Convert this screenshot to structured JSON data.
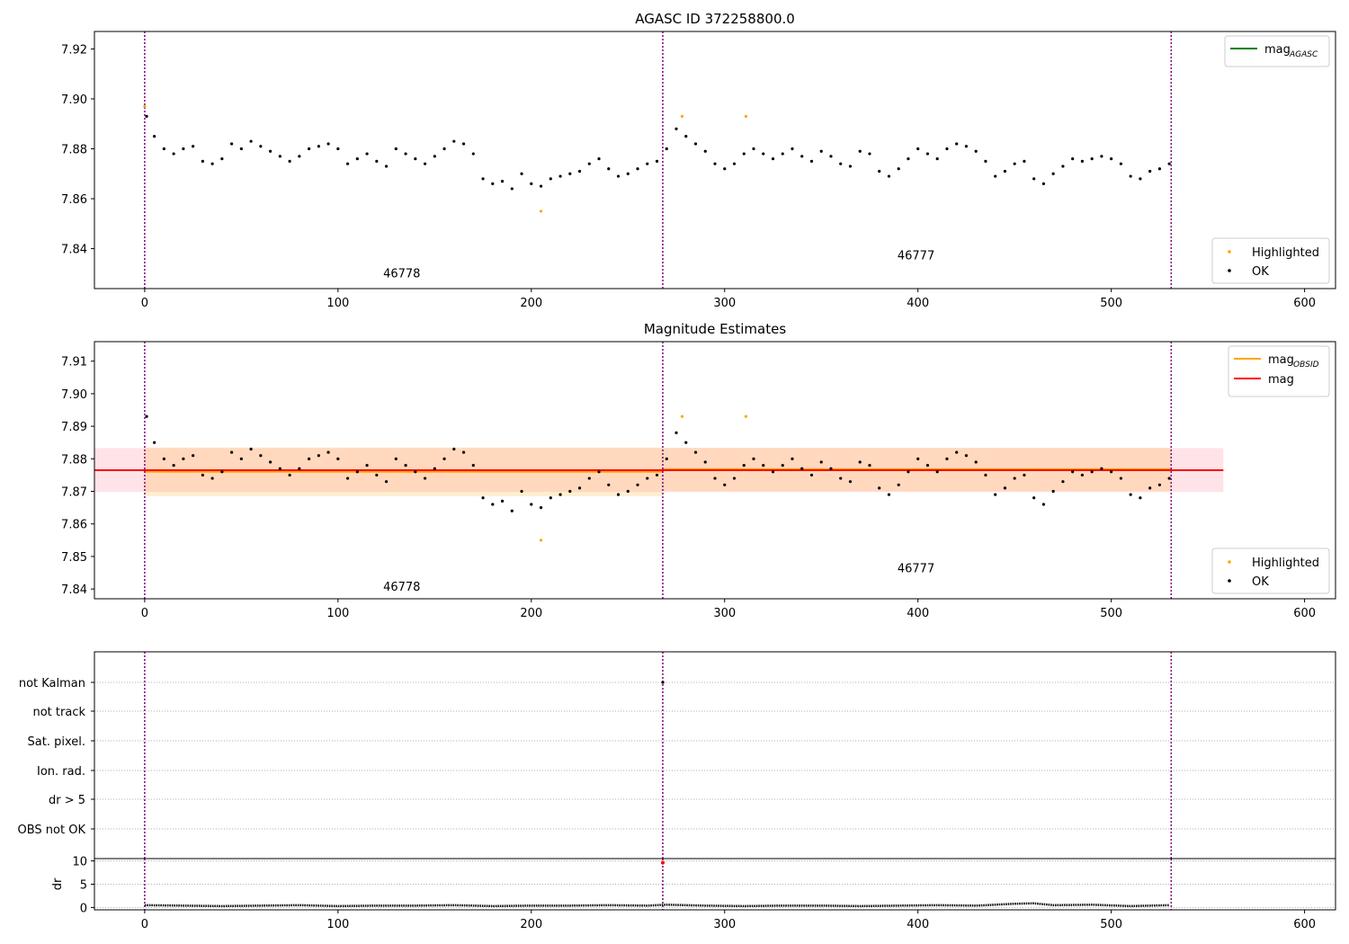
{
  "chart_data": [
    {
      "type": "scatter",
      "title": "AGASC ID 372258800.0",
      "xlim": [
        -26,
        616
      ],
      "ylim": [
        7.824,
        7.927
      ],
      "xticks": [
        0,
        100,
        200,
        300,
        400,
        500,
        600
      ],
      "yticks": [
        7.84,
        7.86,
        7.88,
        7.9,
        7.92
      ],
      "ytick_labels": [
        "7.84",
        "7.86",
        "7.88",
        "7.90",
        "7.92"
      ],
      "obs_boundaries": [
        0,
        268,
        531
      ],
      "obsid_labels": [
        {
          "text": "46778",
          "x": 133,
          "y": 7.8285
        },
        {
          "text": "46777",
          "x": 399,
          "y": 7.8357
        }
      ],
      "legend_top": [
        {
          "label": "mag",
          "sub": "AGASC",
          "color": "#008000"
        }
      ],
      "legend_bottom": [
        {
          "label": "Highlighted",
          "color": "#ffa500"
        },
        {
          "label": "OK",
          "color": "#000000"
        }
      ],
      "series": [
        {
          "name": "OK",
          "color": "#000000",
          "x": [
            1,
            5,
            10,
            15,
            20,
            25,
            30,
            35,
            40,
            45,
            50,
            55,
            60,
            65,
            70,
            75,
            80,
            85,
            90,
            95,
            100,
            105,
            110,
            115,
            120,
            125,
            130,
            135,
            140,
            145,
            150,
            155,
            160,
            165,
            170,
            175,
            180,
            185,
            190,
            195,
            200,
            205,
            210,
            215,
            220,
            225,
            230,
            235,
            240,
            245,
            250,
            255,
            260,
            265,
            270,
            275,
            280,
            285,
            290,
            295,
            300,
            305,
            310,
            315,
            320,
            325,
            330,
            335,
            340,
            345,
            350,
            355,
            360,
            365,
            370,
            375,
            380,
            385,
            390,
            395,
            400,
            405,
            410,
            415,
            420,
            425,
            430,
            435,
            440,
            445,
            450,
            455,
            460,
            465,
            470,
            475,
            480,
            485,
            490,
            495,
            500,
            505,
            510,
            515,
            520,
            525,
            530
          ],
          "y": [
            7.893,
            7.885,
            7.88,
            7.878,
            7.88,
            7.881,
            7.875,
            7.874,
            7.876,
            7.882,
            7.88,
            7.883,
            7.881,
            7.879,
            7.877,
            7.875,
            7.877,
            7.88,
            7.881,
            7.882,
            7.88,
            7.874,
            7.876,
            7.878,
            7.875,
            7.873,
            7.88,
            7.878,
            7.876,
            7.874,
            7.877,
            7.88,
            7.883,
            7.882,
            7.878,
            7.868,
            7.866,
            7.867,
            7.864,
            7.87,
            7.866,
            7.865,
            7.868,
            7.869,
            7.87,
            7.871,
            7.874,
            7.876,
            7.872,
            7.869,
            7.87,
            7.872,
            7.874,
            7.875,
            7.88,
            7.888,
            7.885,
            7.882,
            7.879,
            7.874,
            7.872,
            7.874,
            7.878,
            7.88,
            7.878,
            7.876,
            7.878,
            7.88,
            7.877,
            7.875,
            7.879,
            7.877,
            7.874,
            7.873,
            7.879,
            7.878,
            7.871,
            7.869,
            7.872,
            7.876,
            7.88,
            7.878,
            7.876,
            7.88,
            7.882,
            7.881,
            7.879,
            7.875,
            7.869,
            7.871,
            7.874,
            7.875,
            7.868,
            7.866,
            7.87,
            7.873,
            7.876,
            7.875,
            7.876,
            7.877,
            7.876,
            7.874,
            7.869,
            7.868,
            7.871,
            7.872,
            7.874
          ]
        },
        {
          "name": "Highlighted",
          "color": "#ffa500",
          "x": [
            0,
            205,
            278,
            311
          ],
          "y": [
            7.897,
            7.855,
            7.893,
            7.893
          ]
        }
      ]
    },
    {
      "type": "scatter",
      "title": "Magnitude Estimates",
      "xlim": [
        -26,
        616
      ],
      "ylim": [
        7.837,
        7.916
      ],
      "xticks": [
        0,
        100,
        200,
        300,
        400,
        500,
        600
      ],
      "yticks": [
        7.84,
        7.85,
        7.86,
        7.87,
        7.88,
        7.89,
        7.9,
        7.91
      ],
      "ytick_labels": [
        "7.84",
        "7.85",
        "7.86",
        "7.87",
        "7.88",
        "7.89",
        "7.90",
        "7.91"
      ],
      "obs_boundaries": [
        0,
        268,
        531
      ],
      "obsid_labels": [
        {
          "text": "46778",
          "x": 133,
          "y": 7.8395
        },
        {
          "text": "46777",
          "x": 399,
          "y": 7.8452
        }
      ],
      "legend_top": [
        {
          "label": "mag",
          "sub": "OBSID",
          "color": "#ffa500"
        },
        {
          "label": "mag",
          "sub": "",
          "color": "#ff0000"
        }
      ],
      "legend_bottom": [
        {
          "label": "Highlighted",
          "color": "#ffa500"
        },
        {
          "label": "OK",
          "color": "#000000"
        }
      ],
      "mag": {
        "value": 7.8765,
        "band": [
          7.8698,
          7.8833
        ],
        "xrange": [
          -26,
          558
        ],
        "color": "#ff0000",
        "band_color": "#ffc0cb"
      },
      "mag_obsid": [
        {
          "xrange": [
            0,
            268
          ],
          "value": 7.876,
          "band": [
            7.8685,
            7.8835
          ]
        },
        {
          "xrange": [
            268,
            531
          ],
          "value": 7.8768,
          "band": [
            7.87,
            7.8834
          ]
        }
      ],
      "series": [
        {
          "name": "OK",
          "color": "#000000",
          "x": [
            1,
            5,
            10,
            15,
            20,
            25,
            30,
            35,
            40,
            45,
            50,
            55,
            60,
            65,
            70,
            75,
            80,
            85,
            90,
            95,
            100,
            105,
            110,
            115,
            120,
            125,
            130,
            135,
            140,
            145,
            150,
            155,
            160,
            165,
            170,
            175,
            180,
            185,
            190,
            195,
            200,
            205,
            210,
            215,
            220,
            225,
            230,
            235,
            240,
            245,
            250,
            255,
            260,
            265,
            270,
            275,
            280,
            285,
            290,
            295,
            300,
            305,
            310,
            315,
            320,
            325,
            330,
            335,
            340,
            345,
            350,
            355,
            360,
            365,
            370,
            375,
            380,
            385,
            390,
            395,
            400,
            405,
            410,
            415,
            420,
            425,
            430,
            435,
            440,
            445,
            450,
            455,
            460,
            465,
            470,
            475,
            480,
            485,
            490,
            495,
            500,
            505,
            510,
            515,
            520,
            525,
            530
          ],
          "y": [
            7.893,
            7.885,
            7.88,
            7.878,
            7.88,
            7.881,
            7.875,
            7.874,
            7.876,
            7.882,
            7.88,
            7.883,
            7.881,
            7.879,
            7.877,
            7.875,
            7.877,
            7.88,
            7.881,
            7.882,
            7.88,
            7.874,
            7.876,
            7.878,
            7.875,
            7.873,
            7.88,
            7.878,
            7.876,
            7.874,
            7.877,
            7.88,
            7.883,
            7.882,
            7.878,
            7.868,
            7.866,
            7.867,
            7.864,
            7.87,
            7.866,
            7.865,
            7.868,
            7.869,
            7.87,
            7.871,
            7.874,
            7.876,
            7.872,
            7.869,
            7.87,
            7.872,
            7.874,
            7.875,
            7.88,
            7.888,
            7.885,
            7.882,
            7.879,
            7.874,
            7.872,
            7.874,
            7.878,
            7.88,
            7.878,
            7.876,
            7.878,
            7.88,
            7.877,
            7.875,
            7.879,
            7.877,
            7.874,
            7.873,
            7.879,
            7.878,
            7.871,
            7.869,
            7.872,
            7.876,
            7.88,
            7.878,
            7.876,
            7.88,
            7.882,
            7.881,
            7.879,
            7.875,
            7.869,
            7.871,
            7.874,
            7.875,
            7.868,
            7.866,
            7.87,
            7.873,
            7.876,
            7.875,
            7.876,
            7.877,
            7.876,
            7.874,
            7.869,
            7.868,
            7.871,
            7.872,
            7.874
          ]
        },
        {
          "name": "Highlighted",
          "color": "#ffa500",
          "x": [
            205,
            278,
            311
          ],
          "y": [
            7.855,
            7.893,
            7.893
          ]
        }
      ]
    },
    {
      "type": "scatter",
      "xlim": [
        -26,
        616
      ],
      "categories": [
        "not Kalman",
        "not track",
        "Sat. pixel.",
        "Ion. rad.",
        "dr > 5",
        "OBS not OK"
      ],
      "obs_boundaries": [
        0,
        268,
        531
      ],
      "flag_points": [
        {
          "x": 268,
          "category": "not Kalman"
        }
      ]
    },
    {
      "type": "scatter",
      "ylabel": "dr",
      "xlim": [
        -26,
        616
      ],
      "ylim": [
        -0.5,
        10.5
      ],
      "xticks": [
        0,
        100,
        200,
        300,
        400,
        500,
        600
      ],
      "yticks": [
        0,
        5,
        10
      ],
      "obs_boundaries": [
        0,
        268,
        531
      ],
      "highlight_point": {
        "x": 268,
        "y": 9.6,
        "color": "#ff0000"
      },
      "series": [
        {
          "name": "dr",
          "color": "#000000",
          "x": [
            0,
            20,
            40,
            60,
            80,
            100,
            120,
            140,
            160,
            180,
            200,
            220,
            240,
            260,
            270,
            290,
            310,
            330,
            350,
            370,
            390,
            410,
            430,
            450,
            460,
            470,
            490,
            510,
            530
          ],
          "y": [
            0.5,
            0.4,
            0.3,
            0.4,
            0.5,
            0.3,
            0.4,
            0.4,
            0.5,
            0.3,
            0.4,
            0.4,
            0.5,
            0.4,
            0.6,
            0.4,
            0.3,
            0.4,
            0.4,
            0.3,
            0.4,
            0.5,
            0.4,
            0.8,
            0.9,
            0.5,
            0.6,
            0.3,
            0.5
          ]
        }
      ]
    }
  ]
}
